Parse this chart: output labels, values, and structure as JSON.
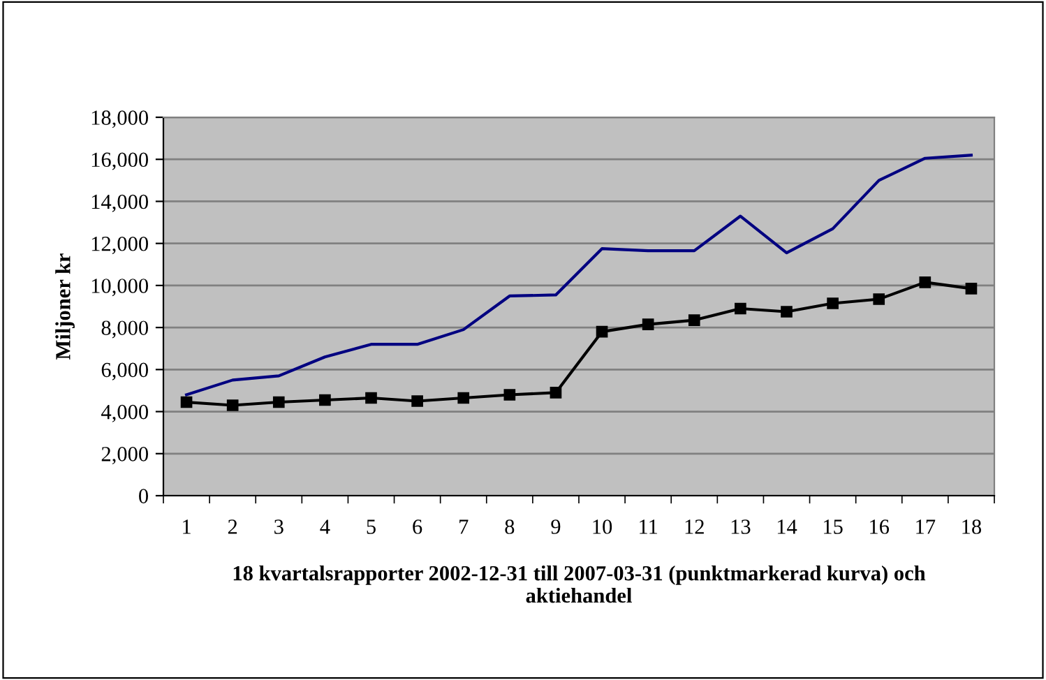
{
  "chart_data": {
    "type": "line",
    "xlabel": "18 kvartalsrapporter 2002-12-31 till 2007-03-31 (punktmarkerad kurva) och\naktiehandel",
    "ylabel": "Miljoner kr",
    "categories": [
      "1",
      "2",
      "3",
      "4",
      "5",
      "6",
      "7",
      "8",
      "9",
      "10",
      "11",
      "12",
      "13",
      "14",
      "15",
      "16",
      "17",
      "18"
    ],
    "series": [
      {
        "color": "#000080",
        "marker": "none",
        "values": [
          4800,
          5500,
          5700,
          6600,
          7200,
          7200,
          7900,
          9500,
          9550,
          11750,
          11650,
          11650,
          13300,
          11550,
          12700,
          15000,
          16050,
          16200
        ]
      },
      {
        "color": "#000000",
        "marker": "square",
        "values": [
          4450,
          4300,
          4450,
          4550,
          4650,
          4500,
          4650,
          4800,
          4900,
          7800,
          8150,
          8350,
          8900,
          8750,
          9150,
          9350,
          10150,
          9850
        ]
      }
    ],
    "ylim": [
      0,
      18000
    ],
    "yticks": [
      {
        "value": 0,
        "label": "0"
      },
      {
        "value": 2000,
        "label": "2,000"
      },
      {
        "value": 4000,
        "label": "4,000"
      },
      {
        "value": 6000,
        "label": "6,000"
      },
      {
        "value": 8000,
        "label": "8,000"
      },
      {
        "value": 10000,
        "label": "10,000"
      },
      {
        "value": 12000,
        "label": "12,000"
      },
      {
        "value": 14000,
        "label": "14,000"
      },
      {
        "value": 16000,
        "label": "16,000"
      },
      {
        "value": 18000,
        "label": "18,000"
      }
    ],
    "grid": "y",
    "legend": false
  }
}
